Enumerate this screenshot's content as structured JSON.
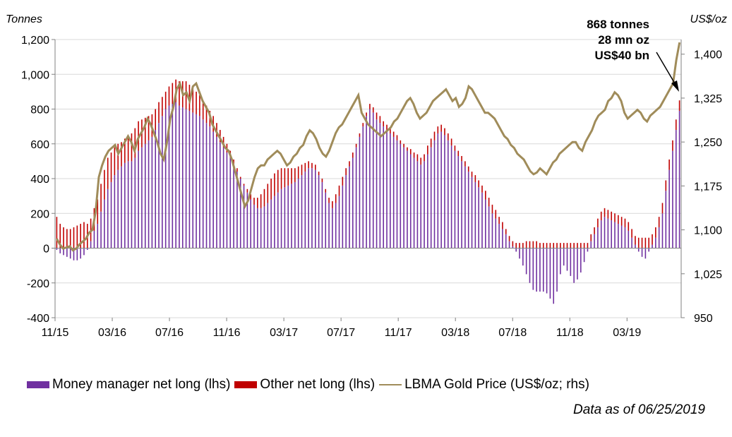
{
  "chart_data": {
    "type": "bar",
    "left_axis": {
      "unit_label": "Tonnes",
      "min": -400,
      "max": 1200,
      "ticks": [
        "-400",
        "-200",
        "0",
        "200",
        "400",
        "600",
        "800",
        "1,000",
        "1,200"
      ]
    },
    "right_axis": {
      "unit_label": "US$/oz",
      "min": 950,
      "max": 1425,
      "ticks": [
        "950",
        "1,025",
        "1,100",
        "1,175",
        "1,250",
        "1,325",
        "1,400"
      ]
    },
    "x_ticks": [
      "11/15",
      "03/16",
      "07/16",
      "11/16",
      "03/17",
      "07/17",
      "11/17",
      "03/18",
      "07/18",
      "11/18",
      "03/19"
    ],
    "annotation": [
      "868 tonnes",
      "28 mn oz",
      "US$40 bn"
    ],
    "note": "Data as of 06/25/2019",
    "series": [
      {
        "name": "Money manager net long (lhs)",
        "color": "#7030a0",
        "type": "bar",
        "values": [
          -10,
          -30,
          -40,
          -50,
          -60,
          -70,
          -70,
          -60,
          -40,
          -10,
          40,
          100,
          140,
          210,
          280,
          340,
          380,
          420,
          450,
          470,
          490,
          500,
          500,
          520,
          560,
          580,
          600,
          620,
          640,
          680,
          720,
          760,
          800,
          820,
          830,
          840,
          820,
          810,
          800,
          790,
          780,
          770,
          760,
          740,
          720,
          700,
          670,
          640,
          610,
          580,
          550,
          520,
          480,
          440,
          400,
          360,
          320,
          280,
          250,
          230,
          230,
          240,
          260,
          280,
          300,
          320,
          340,
          350,
          360,
          370,
          380,
          400,
          420,
          440,
          460,
          460,
          450,
          420,
          380,
          320,
          260,
          230,
          260,
          300,
          360,
          420,
          470,
          520,
          580,
          640,
          700,
          760,
          800,
          780,
          740,
          720,
          700,
          680,
          660,
          640,
          620,
          600,
          580,
          560,
          540,
          520,
          500,
          480,
          500,
          540,
          580,
          620,
          660,
          670,
          650,
          620,
          590,
          560,
          530,
          500,
          470,
          440,
          410,
          380,
          350,
          320,
          280,
          240,
          200,
          170,
          140,
          110,
          80,
          40,
          10,
          -20,
          -60,
          -100,
          -150,
          -200,
          -240,
          -250,
          -250,
          -250,
          -260,
          -290,
          -320,
          -250,
          -150,
          -100,
          -130,
          -160,
          -200,
          -180,
          -140,
          -80,
          -20,
          40,
          80,
          120,
          160,
          180,
          170,
          160,
          150,
          140,
          130,
          120,
          100,
          60,
          20,
          -20,
          -50,
          -60,
          -20,
          20,
          60,
          120,
          200,
          330,
          450,
          560,
          680,
          790
        ]
      },
      {
        "name": "Other net long (lhs)",
        "color": "#c00000",
        "type": "bar",
        "values": [
          180,
          140,
          120,
          110,
          110,
          120,
          130,
          140,
          150,
          140,
          130,
          130,
          140,
          160,
          170,
          180,
          170,
          160,
          150,
          140,
          140,
          150,
          160,
          170,
          170,
          160,
          150,
          140,
          130,
          120,
          120,
          110,
          100,
          110,
          120,
          130,
          140,
          150,
          160,
          150,
          140,
          130,
          120,
          110,
          100,
          90,
          90,
          80,
          70,
          60,
          50,
          40,
          30,
          20,
          10,
          10,
          20,
          30,
          40,
          60,
          80,
          100,
          110,
          120,
          130,
          130,
          120,
          110,
          100,
          90,
          80,
          70,
          60,
          50,
          40,
          30,
          30,
          20,
          20,
          20,
          30,
          40,
          50,
          60,
          50,
          40,
          30,
          30,
          20,
          20,
          20,
          20,
          30,
          30,
          40,
          40,
          30,
          30,
          30,
          30,
          30,
          20,
          20,
          20,
          30,
          30,
          40,
          40,
          40,
          50,
          50,
          50,
          40,
          40,
          40,
          40,
          40,
          30,
          30,
          30,
          30,
          30,
          30,
          40,
          40,
          40,
          50,
          50,
          50,
          50,
          40,
          40,
          30,
          30,
          30,
          30,
          30,
          30,
          40,
          40,
          40,
          40,
          30,
          30,
          30,
          30,
          30,
          30,
          30,
          30,
          30,
          30,
          30,
          30,
          30,
          30,
          30,
          40,
          40,
          50,
          50,
          50,
          50,
          50,
          50,
          50,
          50,
          50,
          50,
          50,
          50,
          60,
          60,
          60,
          60,
          60,
          60,
          60,
          60,
          60,
          60,
          60,
          60,
          60,
          60,
          70,
          70,
          70,
          78
        ]
      },
      {
        "name": "LBMA Gold Price (US$/oz; rhs)",
        "color": "#a08c5a",
        "type": "line",
        "values": [
          1085,
          1075,
          1068,
          1070,
          1072,
          1065,
          1068,
          1075,
          1080,
          1085,
          1095,
          1100,
          1130,
          1190,
          1210,
          1225,
          1235,
          1240,
          1245,
          1230,
          1240,
          1250,
          1260,
          1250,
          1235,
          1255,
          1265,
          1275,
          1290,
          1280,
          1265,
          1250,
          1230,
          1220,
          1250,
          1290,
          1310,
          1340,
          1350,
          1330,
          1335,
          1320,
          1345,
          1350,
          1335,
          1320,
          1310,
          1300,
          1280,
          1270,
          1260,
          1250,
          1240,
          1235,
          1220,
          1200,
          1180,
          1160,
          1140,
          1150,
          1170,
          1190,
          1205,
          1210,
          1210,
          1220,
          1225,
          1230,
          1235,
          1230,
          1220,
          1210,
          1215,
          1225,
          1230,
          1240,
          1245,
          1260,
          1270,
          1265,
          1255,
          1240,
          1230,
          1225,
          1235,
          1250,
          1265,
          1275,
          1280,
          1290,
          1300,
          1310,
          1320,
          1330,
          1300,
          1290,
          1280,
          1275,
          1270,
          1265,
          1260,
          1265,
          1270,
          1275,
          1285,
          1290,
          1300,
          1310,
          1320,
          1325,
          1315,
          1300,
          1290,
          1295,
          1300,
          1310,
          1320,
          1325,
          1330,
          1335,
          1340,
          1330,
          1320,
          1325,
          1310,
          1315,
          1325,
          1345,
          1340,
          1330,
          1320,
          1310,
          1300,
          1300,
          1295,
          1290,
          1280,
          1270,
          1260,
          1255,
          1245,
          1240,
          1230,
          1225,
          1220,
          1210,
          1200,
          1195,
          1198,
          1205,
          1200,
          1195,
          1205,
          1215,
          1220,
          1230,
          1235,
          1240,
          1245,
          1250,
          1250,
          1240,
          1235,
          1250,
          1260,
          1270,
          1285,
          1295,
          1300,
          1305,
          1320,
          1325,
          1335,
          1330,
          1320,
          1300,
          1290,
          1295,
          1300,
          1305,
          1300,
          1290,
          1285,
          1295,
          1300,
          1305,
          1310,
          1320,
          1330,
          1340,
          1350,
          1390,
          1420
        ]
      }
    ]
  }
}
